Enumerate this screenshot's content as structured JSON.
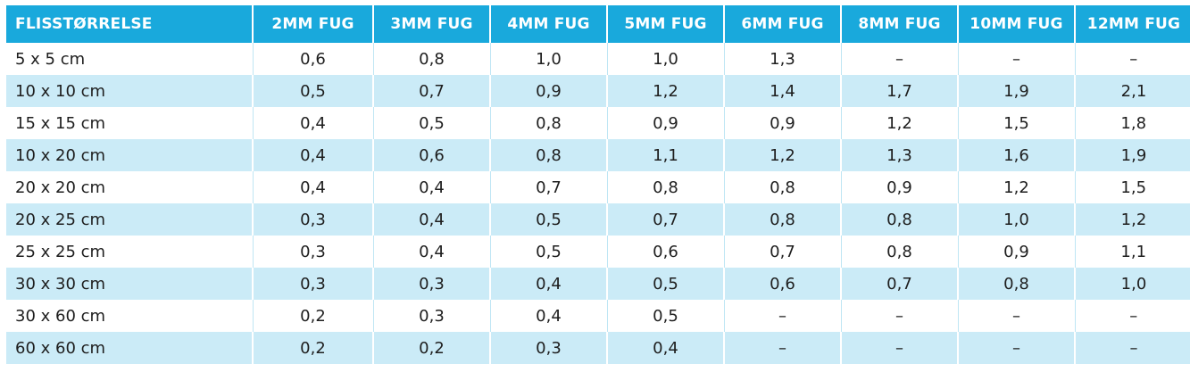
{
  "table": {
    "headers": [
      "FLISSTØRRELSE",
      "2MM FUG",
      "3MM FUG",
      "4MM FUG",
      "5MM FUG",
      "6MM FUG",
      "8MM FUG",
      "10MM FUG",
      "12MM FUG"
    ],
    "rows": [
      [
        "5 x 5 cm",
        "0,6",
        "0,8",
        "1,0",
        "1,0",
        "1,3",
        "–",
        "–",
        "–"
      ],
      [
        "10 x 10 cm",
        "0,5",
        "0,7",
        "0,9",
        "1,2",
        "1,4",
        "1,7",
        "1,9",
        "2,1"
      ],
      [
        "15 x 15 cm",
        "0,4",
        "0,5",
        "0,8",
        "0,9",
        "0,9",
        "1,2",
        "1,5",
        "1,8"
      ],
      [
        "10 x 20 cm",
        "0,4",
        "0,6",
        "0,8",
        "1,1",
        "1,2",
        "1,3",
        "1,6",
        "1,9"
      ],
      [
        "20 x 20 cm",
        "0,4",
        "0,4",
        "0,7",
        "0,8",
        "0,8",
        "0,9",
        "1,2",
        "1,5"
      ],
      [
        "20 x 25 cm",
        "0,3",
        "0,4",
        "0,5",
        "0,7",
        "0,8",
        "0,8",
        "1,0",
        "1,2"
      ],
      [
        "25 x 25 cm",
        "0,3",
        "0,4",
        "0,5",
        "0,6",
        "0,7",
        "0,8",
        "0,9",
        "1,1"
      ],
      [
        "30 x 30 cm",
        "0,3",
        "0,3",
        "0,4",
        "0,5",
        "0,6",
        "0,7",
        "0,8",
        "1,0"
      ],
      [
        "30 x 60 cm",
        "0,2",
        "0,3",
        "0,4",
        "0,5",
        "–",
        "–",
        "–",
        "–"
      ],
      [
        "60 x 60 cm",
        "0,2",
        "0,2",
        "0,3",
        "0,4",
        "–",
        "–",
        "–",
        "–"
      ]
    ]
  },
  "colors": {
    "header_bg": "#19a9dc",
    "header_text": "#ffffff",
    "stripe_bg": "#cbebf7",
    "body_text": "#1e1e1e"
  }
}
